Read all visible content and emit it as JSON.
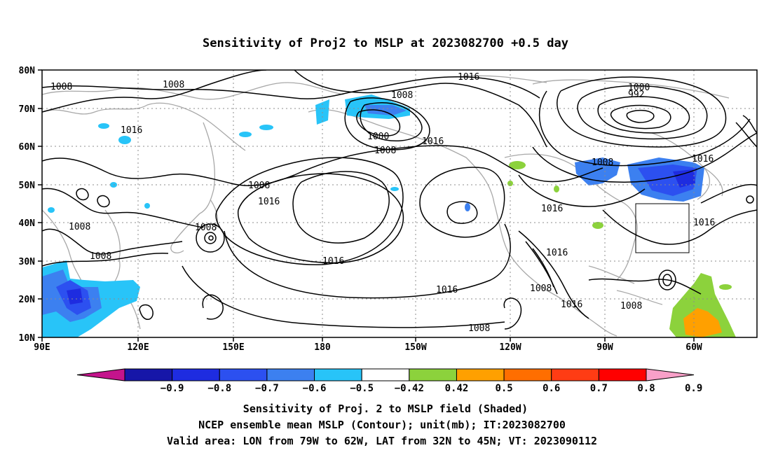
{
  "title": "Sensitivity of Proj2 to MSLP at 2023082700 +0.5 day",
  "axes": {
    "lat_labels": [
      "80N",
      "70N",
      "60N",
      "50N",
      "40N",
      "30N",
      "20N",
      "10N"
    ],
    "lon_labels": [
      "90E",
      "120E",
      "150E",
      "180",
      "150W",
      "120W",
      "90W",
      "60W"
    ]
  },
  "contour_labels": [
    "1008",
    "1008",
    "1016",
    "1008",
    "1000",
    "1008",
    "1016",
    "1016",
    "1008",
    "1016",
    "1000",
    "992",
    "1008",
    "1016",
    "1008",
    "1016",
    "1008",
    "1016",
    "1016",
    "1008",
    "1016",
    "1016",
    "1008",
    "1016",
    "1008",
    "1008"
  ],
  "colorbar": {
    "ticks": [
      "−0.9",
      "−0.8",
      "−0.7",
      "−0.6",
      "−0.5",
      "−0.42",
      "0.42",
      "0.5",
      "0.6",
      "0.7",
      "0.8",
      "0.9"
    ],
    "colors": [
      "#c4148c",
      "#1616a8",
      "#1e2ce0",
      "#2c50f0",
      "#3c80f0",
      "#28c4f8",
      "#ffffff",
      "#8cd23c",
      "#ffa000",
      "#ff6e00",
      "#ff3c14",
      "#ff0000",
      "#f8a0c8"
    ]
  },
  "captions": {
    "line1": "Sensitivity of Proj. 2 to MSLP field (Shaded)",
    "line2": "NCEP ensemble mean MSLP (Contour); unit(mb); IT:2023082700",
    "line3": "Valid area: LON from 79W to 62W, LAT from 32N to 45N; VT: 2023090112"
  }
}
